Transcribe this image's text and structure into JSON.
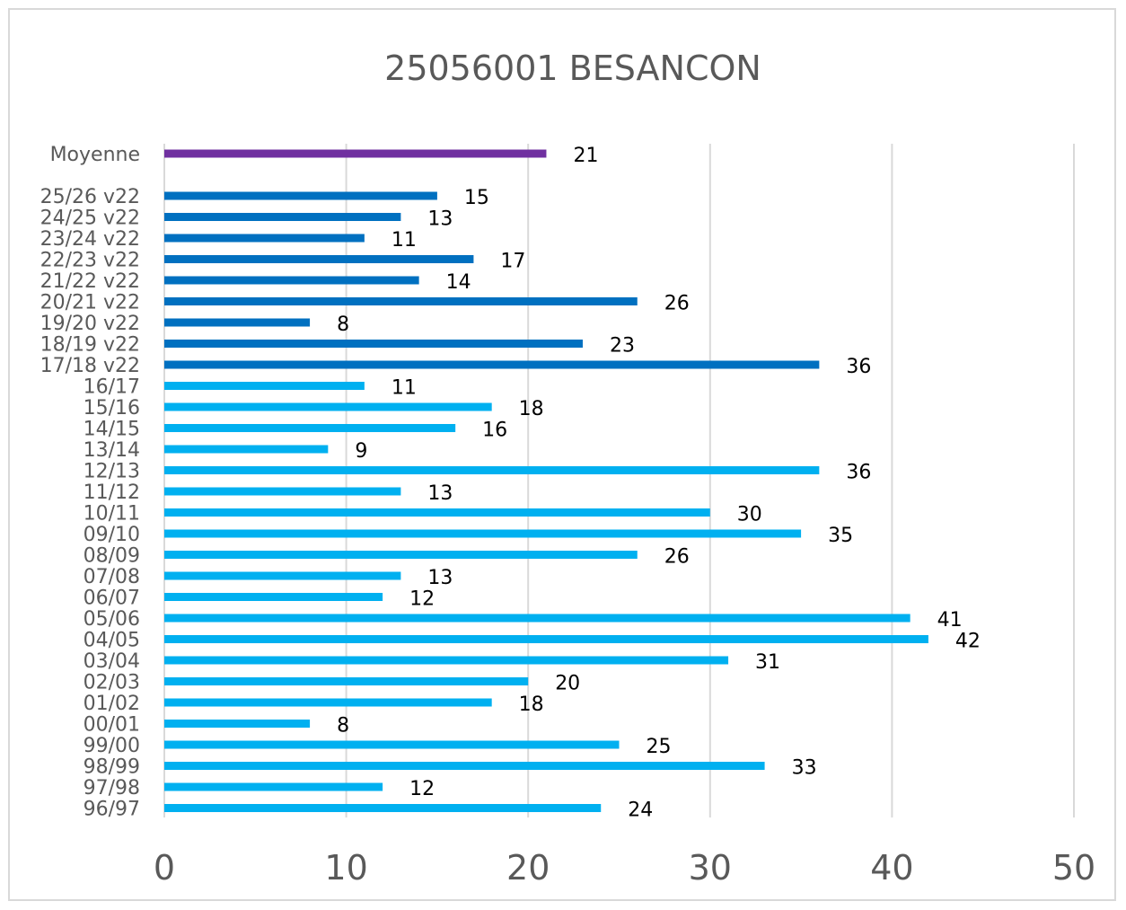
{
  "chart_data": {
    "type": "bar",
    "orientation": "horizontal",
    "title": "25056001 BESANCON",
    "xlabel": "",
    "ylabel": "",
    "xlim": [
      0,
      50
    ],
    "x_ticks": [
      "0",
      "10",
      "20",
      "30",
      "40",
      "50"
    ],
    "grid": true,
    "legend": "none",
    "categories": [
      "Moyenne",
      "25/26 v22",
      "24/25 v22",
      "23/24 v22",
      "22/23 v22",
      "21/22 v22",
      "20/21 v22",
      "19/20 v22",
      "18/19 v22",
      "17/18 v22",
      "16/17",
      "15/16",
      "14/15",
      "13/14",
      "12/13",
      "11/12",
      "10/11",
      "09/10",
      "08/09",
      "07/08",
      "06/07",
      "05/06",
      "04/05",
      "03/04",
      "02/03",
      "01/02",
      "00/01",
      "99/00",
      "98/99",
      "97/98",
      "96/97"
    ],
    "values": [
      21,
      15,
      13,
      11,
      17,
      14,
      26,
      8,
      23,
      36,
      11,
      18,
      16,
      9,
      36,
      13,
      30,
      35,
      26,
      13,
      12,
      41,
      42,
      31,
      20,
      18,
      8,
      25,
      33,
      12,
      24
    ],
    "data_labels": [
      "21",
      "15",
      "13",
      "11",
      "17",
      "14",
      "26",
      "8",
      "23",
      "36",
      "11",
      "18",
      "16",
      "9",
      "36",
      "13",
      "30",
      "35",
      "26",
      "13",
      "12",
      "41",
      "42",
      "31",
      "20",
      "18",
      "8",
      "25",
      "33",
      "12",
      "24"
    ],
    "bar_groups": [
      "average",
      "v22",
      "v22",
      "v22",
      "v22",
      "v22",
      "v22",
      "v22",
      "v22",
      "v22",
      "base",
      "base",
      "base",
      "base",
      "base",
      "base",
      "base",
      "base",
      "base",
      "base",
      "base",
      "base",
      "base",
      "base",
      "base",
      "base",
      "base",
      "base",
      "base",
      "base",
      "base"
    ],
    "colors": {
      "average": "#7030a0",
      "v22": "#0070c0",
      "base": "#00b0f0",
      "grid": "#d9d9d9",
      "axis_text": "#595959"
    }
  }
}
